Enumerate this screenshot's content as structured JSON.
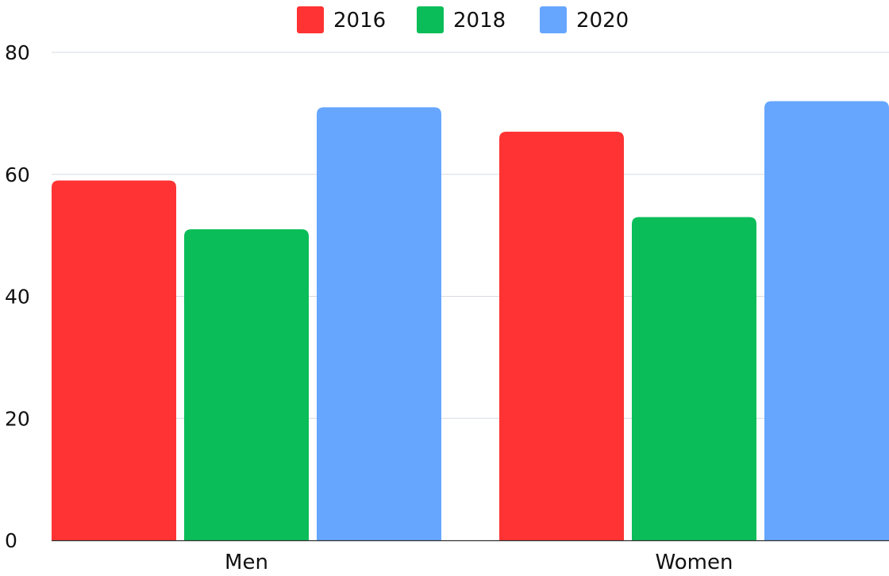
{
  "chart_data": {
    "type": "bar",
    "title": "",
    "xlabel": "",
    "ylabel": "",
    "categories": [
      "Men",
      "Women"
    ],
    "series": [
      {
        "name": "2016",
        "color": "#FF3333",
        "values": [
          59,
          67
        ]
      },
      {
        "name": "2018",
        "color": "#0ABD59",
        "values": [
          51,
          53
        ]
      },
      {
        "name": "2020",
        "color": "#66A6FF",
        "values": [
          71,
          72
        ]
      }
    ],
    "ylim": [
      0,
      80
    ],
    "yticks": [
      0,
      20,
      40,
      60,
      80
    ],
    "grid": true,
    "legend_position": "top-center"
  }
}
